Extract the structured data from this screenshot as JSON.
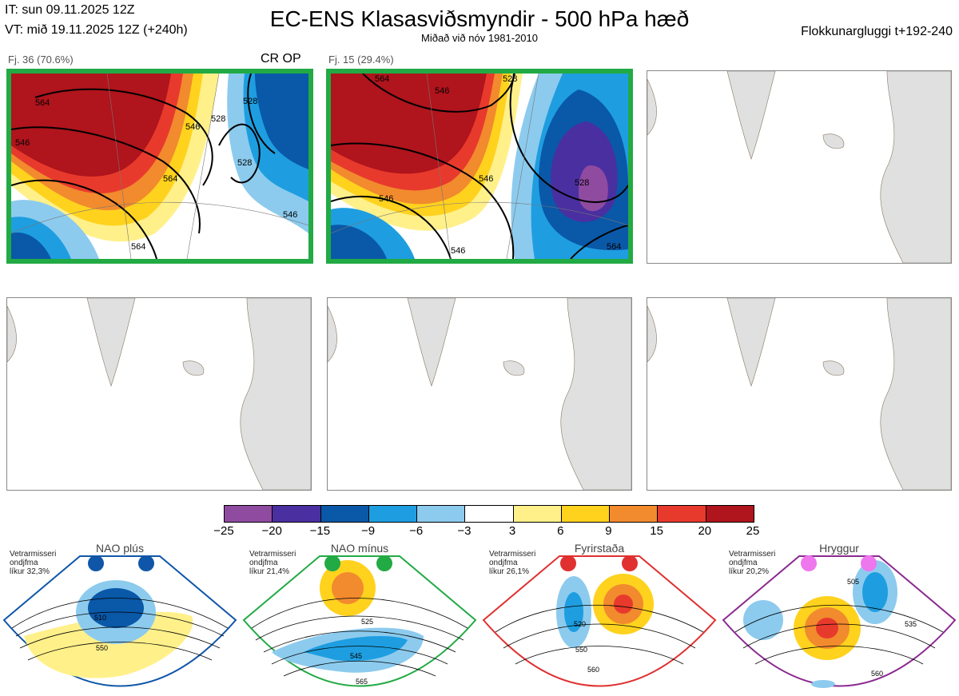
{
  "header": {
    "it": "IT: sun 09.11.2025 12Z",
    "vt": "VT: mið 19.11.2025 12Z  (+240h)",
    "title": "EC-ENS Klasasviðsmyndir - 500 hPa hæð",
    "subtitle": "Miðað við nóv 1981-2010",
    "window": "Flokkunargluggi t+192-240"
  },
  "clusters": [
    {
      "label": "Fj. 36 (70.6%)",
      "op": "CR OP",
      "contour_labels": [
        "564",
        "546",
        "546",
        "528",
        "528",
        "564",
        "564",
        "546",
        "528"
      ]
    },
    {
      "label": "Fj. 15 (29.4%)",
      "op": "",
      "contour_labels": [
        "564",
        "546",
        "528",
        "546",
        "528",
        "546",
        "564",
        "546"
      ]
    }
  ],
  "colorbar": {
    "colors": [
      "#8f4ba0",
      "#4a2fa0",
      "#0a58a8",
      "#1e9ee0",
      "#8ccbee",
      "#ffffff",
      "#fff08a",
      "#ffd21e",
      "#f28a2e",
      "#e83a2c",
      "#b0141c"
    ],
    "ticks": [
      "−25",
      "−20",
      "−15",
      "−9",
      "−6",
      "−3",
      "3",
      "6",
      "9",
      "15",
      "20",
      "25"
    ]
  },
  "regimes": [
    {
      "name": "NAO plús",
      "freq": "Vetrarmisseri\nondjfma\nlíkur 32,3%",
      "color": "#1056a8",
      "dot": "#1056a8",
      "labels": [
        "510",
        "550"
      ]
    },
    {
      "name": "NAO mínus",
      "freq": "Vetrarmisseri\nondjfma\nlíkur 21,4%",
      "color": "#22aa44",
      "dot": "#22aa44",
      "labels": [
        "525",
        "545",
        "565"
      ]
    },
    {
      "name": "Fyrirstaða",
      "freq": "Vetrarmisseri\nondjfma\nlíkur 26,1%",
      "color": "#e03030",
      "dot": "#e03030",
      "labels": [
        "520",
        "550",
        "560"
      ]
    },
    {
      "name": "Hryggur",
      "freq": "Vetrarmisseri\nondjfma\nlíkur 20,2%",
      "color": "#8a2a90",
      "dot": "#ee77ee",
      "labels": [
        "505",
        "535",
        "560"
      ]
    }
  ]
}
